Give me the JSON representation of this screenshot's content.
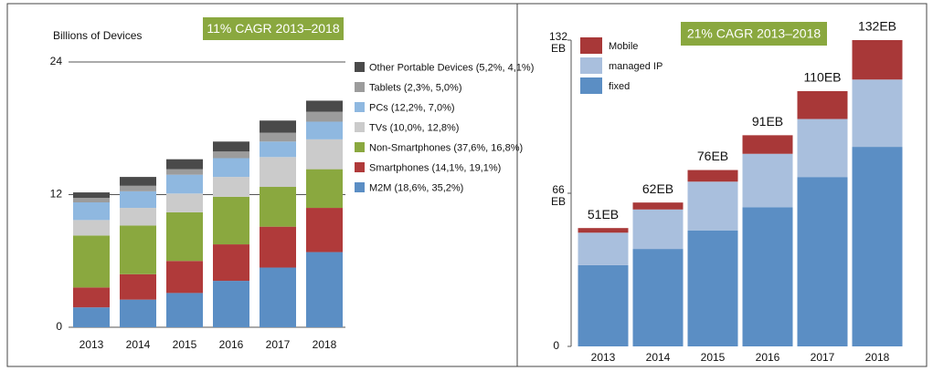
{
  "chart_data": [
    {
      "type": "stacked_bar",
      "annotation": "11% CAGR 2013–2018",
      "y_label": "Billions of Devices",
      "categories": [
        "2013",
        "2014",
        "2015",
        "2016",
        "2017",
        "2018"
      ],
      "ylim": [
        0,
        24
      ],
      "yticks": [
        0,
        12,
        24
      ],
      "grid": true,
      "series": [
        {
          "name": "M2M (18,6%, 35,2%)",
          "color": "#5b8ec4",
          "values": [
            1.8,
            2.5,
            3.1,
            4.2,
            5.4,
            6.8
          ]
        },
        {
          "name": "Smartphones (14,1%, 19,1%)",
          "color": "#b03a3a",
          "values": [
            1.8,
            2.3,
            2.9,
            3.3,
            3.7,
            4.0
          ]
        },
        {
          "name": "Non-Smartphones (37,6%, 16,8%)",
          "color": "#8aa83f",
          "values": [
            4.7,
            4.4,
            4.4,
            4.3,
            3.6,
            3.5
          ]
        },
        {
          "name": "TVs (10,0%, 12,8%)",
          "color": "#cbcbcb",
          "values": [
            1.4,
            1.6,
            1.7,
            1.8,
            2.7,
            2.7
          ]
        },
        {
          "name": "PCs (12,2%, 7,0%)",
          "color": "#8fb8e0",
          "values": [
            1.6,
            1.5,
            1.7,
            1.7,
            1.4,
            1.6
          ]
        },
        {
          "name": "Tablets (2,3%, 5,0%)",
          "color": "#9c9c9c",
          "values": [
            0.4,
            0.5,
            0.5,
            0.6,
            0.8,
            0.9
          ]
        },
        {
          "name": "Other Portable Devices (5,2%, 4,1%)",
          "color": "#4a4a4a",
          "values": [
            0.5,
            0.8,
            0.9,
            0.9,
            1.1,
            1.0
          ]
        }
      ]
    },
    {
      "type": "stacked_bar",
      "annotation": "21% CAGR 2013–2018",
      "categories": [
        "2013",
        "2014",
        "2015",
        "2016",
        "2017",
        "2018"
      ],
      "ylim": [
        0,
        132
      ],
      "yticks": [
        0,
        {
          "value": 66,
          "label": "66 EB"
        },
        {
          "value": 132,
          "label": "132 EB"
        }
      ],
      "grid": false,
      "totals": [
        51,
        62,
        76,
        91,
        110,
        132
      ],
      "total_labels": [
        "51EB",
        "62EB",
        "76EB",
        "91EB",
        "110EB",
        "132EB"
      ],
      "series": [
        {
          "name": "fixed",
          "color": "#5b8ec4",
          "values": [
            35,
            42,
            50,
            60,
            73,
            86
          ]
        },
        {
          "name": "managed IP",
          "color": "#a9bfdd",
          "values": [
            14,
            17,
            21,
            23,
            25,
            29
          ]
        },
        {
          "name": "Mobile",
          "color": "#a83838",
          "values": [
            2,
            3,
            5,
            8,
            12,
            17
          ]
        }
      ]
    }
  ]
}
